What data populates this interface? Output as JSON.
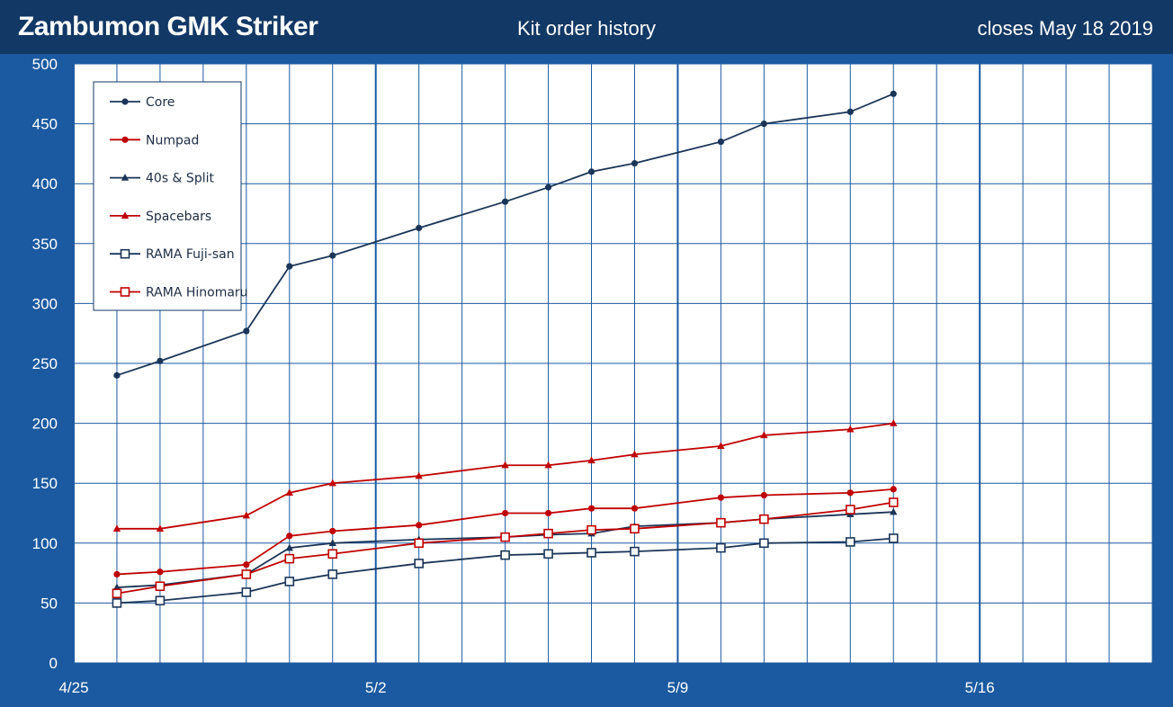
{
  "header": {
    "title": "Zambumon GMK Striker",
    "subtitle": "Kit order history",
    "closes_label": "closes",
    "closes_date": "May 18",
    "closes_year": "2019"
  },
  "colors": {
    "background": "#1b5aa0",
    "header": "#123865",
    "plot": "#ffffff",
    "grid": "#1b5aa0",
    "navy": "#1a3557",
    "red": "#c00000"
  },
  "chart_data": {
    "type": "line",
    "title": "Kit order history",
    "xlabel": "",
    "ylabel": "",
    "x_axis": {
      "type": "date",
      "range": [
        "2019-04-25",
        "2019-05-20"
      ],
      "tick_labels": [
        "4/25",
        "5/2",
        "5/9",
        "5/16"
      ],
      "tick_dates": [
        "2019-04-25",
        "2019-05-02",
        "2019-05-09",
        "2019-05-16"
      ]
    },
    "ylim": [
      0,
      500
    ],
    "yticks": [
      0,
      50,
      100,
      150,
      200,
      250,
      300,
      350,
      400,
      450,
      500
    ],
    "grid": true,
    "legend_position": "top-left",
    "x": [
      "2019-04-26",
      "2019-04-27",
      "2019-04-29",
      "2019-04-30",
      "2019-05-01",
      "2019-05-03",
      "2019-05-05",
      "2019-05-06",
      "2019-05-07",
      "2019-05-08",
      "2019-05-10",
      "2019-05-11",
      "2019-05-13",
      "2019-05-14"
    ],
    "series": [
      {
        "name": "Core",
        "color": "#1a3557",
        "marker": "circle",
        "values": [
          240,
          252,
          277,
          331,
          340,
          363,
          385,
          397,
          410,
          417,
          435,
          450,
          460,
          475
        ]
      },
      {
        "name": "Numpad",
        "color": "#c00000",
        "marker": "circle",
        "values": [
          74,
          76,
          82,
          106,
          110,
          115,
          125,
          125,
          129,
          129,
          138,
          140,
          142,
          145
        ]
      },
      {
        "name": "40s & Split",
        "color": "#1a3557",
        "marker": "triangle",
        "values": [
          63,
          65,
          74,
          96,
          100,
          103,
          105,
          107,
          108,
          114,
          117,
          120,
          124,
          126
        ]
      },
      {
        "name": "Spacebars",
        "color": "#c00000",
        "marker": "triangle",
        "values": [
          112,
          112,
          123,
          142,
          150,
          156,
          165,
          165,
          169,
          174,
          181,
          190,
          195,
          200
        ]
      },
      {
        "name": "RAMA Fuji-san",
        "color": "#1a3557",
        "marker": "square-open",
        "values": [
          50,
          52,
          59,
          68,
          74,
          83,
          90,
          91,
          92,
          93,
          96,
          100,
          101,
          104
        ]
      },
      {
        "name": "RAMA Hinomaru",
        "color": "#c00000",
        "marker": "square-open",
        "values": [
          58,
          64,
          74,
          87,
          91,
          100,
          105,
          108,
          111,
          112,
          117,
          120,
          128,
          134
        ]
      }
    ]
  }
}
